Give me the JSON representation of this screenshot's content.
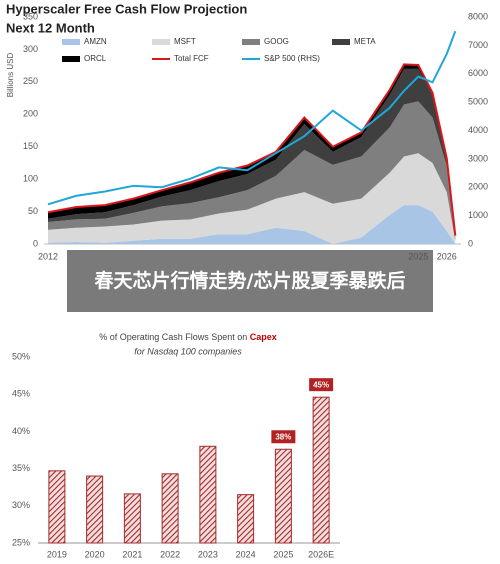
{
  "chart_data": [
    {
      "type": "stacked_area",
      "title": "Hyperscaler Free Cash Flow Projection",
      "subtitle": "Next 12 Month",
      "y_label": "Billions USD",
      "x": [
        2012,
        2013,
        2014,
        2015,
        2016,
        2017,
        2018,
        2019,
        2020,
        2021,
        2022,
        2023,
        2024,
        2024.5,
        2025,
        2025.5,
        2026,
        2026.3
      ],
      "xlim": [
        2012,
        2026.5
      ],
      "xticks": [
        2012,
        2025,
        2026
      ],
      "ylim": [
        0,
        350
      ],
      "yticks": [
        0,
        50,
        100,
        150,
        200,
        250,
        300,
        350
      ],
      "y2lim": [
        0,
        8000
      ],
      "y2ticks": [
        0,
        1000,
        2000,
        3000,
        4000,
        5000,
        6000,
        7000,
        8000
      ],
      "series": [
        {
          "name": "AMZN",
          "kind": "area",
          "color": "#a9c5e6",
          "values": [
            2,
            3,
            2,
            5,
            8,
            8,
            15,
            15,
            25,
            20,
            0,
            10,
            45,
            60,
            60,
            50,
            20,
            0
          ]
        },
        {
          "name": "MSFT",
          "kind": "area",
          "color": "#d9d9d9",
          "values": [
            20,
            22,
            25,
            25,
            28,
            30,
            32,
            38,
            45,
            60,
            62,
            60,
            65,
            75,
            80,
            75,
            60,
            5
          ]
        },
        {
          "name": "GOOG",
          "kind": "area",
          "color": "#7f7f7f",
          "values": [
            12,
            13,
            12,
            18,
            22,
            25,
            25,
            30,
            35,
            65,
            60,
            65,
            70,
            80,
            80,
            70,
            40,
            5
          ]
        },
        {
          "name": "META",
          "kind": "area",
          "color": "#3f3f3f",
          "values": [
            5,
            8,
            10,
            12,
            15,
            20,
            25,
            25,
            25,
            40,
            20,
            30,
            50,
            55,
            50,
            35,
            10,
            2
          ]
        },
        {
          "name": "ORCL",
          "kind": "area",
          "color": "#000000",
          "values": [
            10,
            11,
            11,
            10,
            10,
            12,
            13,
            13,
            12,
            10,
            8,
            7,
            8,
            7,
            6,
            3,
            2,
            1
          ]
        },
        {
          "name": "Total FCF",
          "kind": "line",
          "color": "#d7191c",
          "values": [
            49,
            57,
            60,
            70,
            83,
            95,
            110,
            121,
            142,
            195,
            150,
            172,
            238,
            277,
            276,
            233,
            132,
            13
          ]
        },
        {
          "name": "S&P 500 (RHS)",
          "kind": "line",
          "axis": "y2",
          "color": "#1ea7d8",
          "values": [
            1400,
            1700,
            1850,
            2050,
            2000,
            2300,
            2700,
            2600,
            3200,
            3800,
            4700,
            4000,
            4800,
            5400,
            5900,
            5700,
            6700,
            7500
          ]
        }
      ]
    },
    {
      "type": "bar",
      "title": "% of Operating Cash Flows Spent on ",
      "title_highlight": "Capex",
      "subtitle": "for Nasdaq 100 companies",
      "categories": [
        "2019",
        "2020",
        "2021",
        "2022",
        "2023",
        "2024",
        "2025",
        "2026E"
      ],
      "values": [
        34.7,
        34.0,
        31.6,
        34.3,
        38.0,
        31.5,
        37.6,
        44.6
      ],
      "value_labels": [
        null,
        null,
        null,
        null,
        null,
        null,
        "38%",
        "45%"
      ],
      "color": "#a52a2a",
      "ylim": [
        25,
        50
      ],
      "yticks": [
        {
          "value": 25,
          "label": "25%"
        },
        {
          "value": 30,
          "label": "30%"
        },
        {
          "value": 35,
          "label": "35%"
        },
        {
          "value": 40,
          "label": "40%"
        },
        {
          "value": 45,
          "label": "45%"
        },
        {
          "value": 50,
          "label": "50%"
        }
      ]
    }
  ],
  "caption": "春天芯片行情走势/芯片股夏季暴跌后"
}
